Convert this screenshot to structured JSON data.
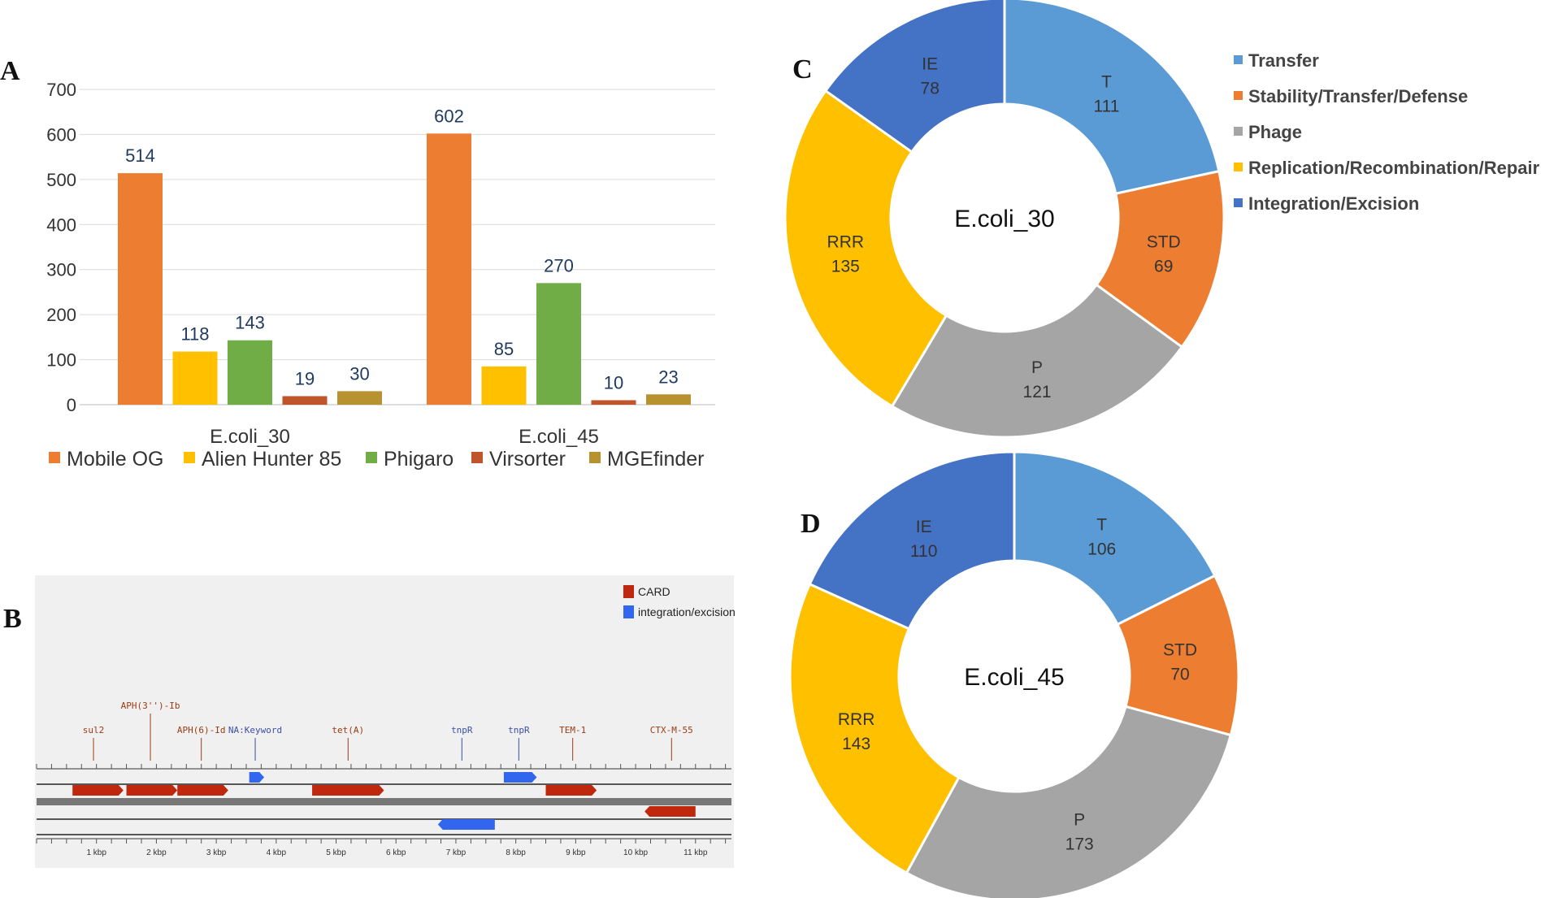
{
  "panels": {
    "a": "A",
    "b": "B",
    "c": "C",
    "d": "D"
  },
  "chart_data": [
    {
      "type": "bar",
      "panel": "A",
      "categories": [
        "E.coli_30",
        "E.coli_45"
      ],
      "series": [
        {
          "name": "Mobile OG",
          "color": "#ED7D31",
          "values": [
            514,
            602
          ]
        },
        {
          "name": "Alien Hunter 85",
          "color": "#FFC000",
          "values": [
            118,
            85
          ]
        },
        {
          "name": "Phigaro",
          "color": "#70AD47",
          "values": [
            143,
            270
          ]
        },
        {
          "name": "Virsorter",
          "color": "#C0542A",
          "values": [
            19,
            10
          ]
        },
        {
          "name": "MGEfinder",
          "color": "#B8922E",
          "values": [
            30,
            23
          ]
        }
      ],
      "ylim": [
        0,
        700
      ],
      "yticks": [
        "0",
        "100",
        "200",
        "300",
        "400",
        "500",
        "600",
        "700"
      ],
      "grid": true,
      "legend": "bottom"
    },
    {
      "type": "pie",
      "panel": "C",
      "center_label": "E.coli_30",
      "slices": [
        {
          "label": "T",
          "value": 111,
          "color": "#5B9BD5"
        },
        {
          "label": "STD",
          "value": 69,
          "color": "#ED7D31"
        },
        {
          "label": "P",
          "value": 121,
          "color": "#A5A5A5"
        },
        {
          "label": "RRR",
          "value": 135,
          "color": "#FFC000"
        },
        {
          "label": "IE",
          "value": 78,
          "color": "#4472C4"
        }
      ],
      "legend": [
        {
          "label": "Transfer",
          "color": "#5B9BD5"
        },
        {
          "label": "Stability/Transfer/Defense",
          "color": "#ED7D31"
        },
        {
          "label": "Phage",
          "color": "#A5A5A5"
        },
        {
          "label": "Replication/Recombination/Repair",
          "color": "#FFC000"
        },
        {
          "label": "Integration/Excision",
          "color": "#4472C4"
        }
      ]
    },
    {
      "type": "pie",
      "panel": "D",
      "center_label": "E.coli_45",
      "slices": [
        {
          "label": "T",
          "value": 106,
          "color": "#5B9BD5"
        },
        {
          "label": "STD",
          "value": 70,
          "color": "#ED7D31"
        },
        {
          "label": "P",
          "value": 173,
          "color": "#A5A5A5"
        },
        {
          "label": "RRR",
          "value": 143,
          "color": "#FFC000"
        },
        {
          "label": "IE",
          "value": 110,
          "color": "#4472C4"
        }
      ]
    }
  ],
  "genome_map": {
    "legend": [
      {
        "label": "CARD",
        "color": "#C0280E"
      },
      {
        "label": "integration/excision",
        "color": "#3366EE"
      }
    ],
    "annotations": [
      {
        "label": "sul2",
        "kbp": 0.95,
        "level": 2,
        "kind": "card"
      },
      {
        "label": "APH(3'')-Ib",
        "kbp": 1.9,
        "level": 1,
        "kind": "card"
      },
      {
        "label": "APH(6)-Id",
        "kbp": 2.75,
        "level": 2,
        "kind": "card"
      },
      {
        "label": "NA:Keyword",
        "kbp": 3.65,
        "level": 2,
        "kind": "ie"
      },
      {
        "label": "tet(A)",
        "kbp": 5.2,
        "level": 2,
        "kind": "card"
      },
      {
        "label": "tnpR",
        "kbp": 7.1,
        "level": 2,
        "kind": "ie"
      },
      {
        "label": "tnpR",
        "kbp": 8.05,
        "level": 2,
        "kind": "ie"
      },
      {
        "label": "TEM-1",
        "kbp": 8.95,
        "level": 2,
        "kind": "card"
      },
      {
        "label": "CTX-M-55",
        "kbp": 10.6,
        "level": 2,
        "kind": "card"
      }
    ],
    "features": [
      {
        "track": 1,
        "start": 3.55,
        "end": 3.8,
        "kind": "ie",
        "dir": "+"
      },
      {
        "track": 1,
        "start": 7.8,
        "end": 8.35,
        "kind": "ie",
        "dir": "+"
      },
      {
        "track": 2,
        "start": 0.6,
        "end": 1.45,
        "kind": "card",
        "dir": "+"
      },
      {
        "track": 2,
        "start": 1.5,
        "end": 2.35,
        "kind": "card",
        "dir": "+"
      },
      {
        "track": 2,
        "start": 2.35,
        "end": 3.2,
        "kind": "card",
        "dir": "+"
      },
      {
        "track": 2,
        "start": 4.6,
        "end": 5.8,
        "kind": "card",
        "dir": "+"
      },
      {
        "track": 2,
        "start": 8.5,
        "end": 9.35,
        "kind": "card",
        "dir": "+"
      },
      {
        "track": 3,
        "start": 10.15,
        "end": 11.0,
        "kind": "card",
        "dir": "-"
      },
      {
        "track": 4,
        "start": 6.7,
        "end": 7.65,
        "kind": "ie",
        "dir": "-"
      }
    ],
    "axis_labels": [
      "1 kbp",
      "2 kbp",
      "3 kbp",
      "4 kbp",
      "5 kbp",
      "6 kbp",
      "7 kbp",
      "8 kbp",
      "9 kbp",
      "10 kbp",
      "11 kbp"
    ]
  }
}
